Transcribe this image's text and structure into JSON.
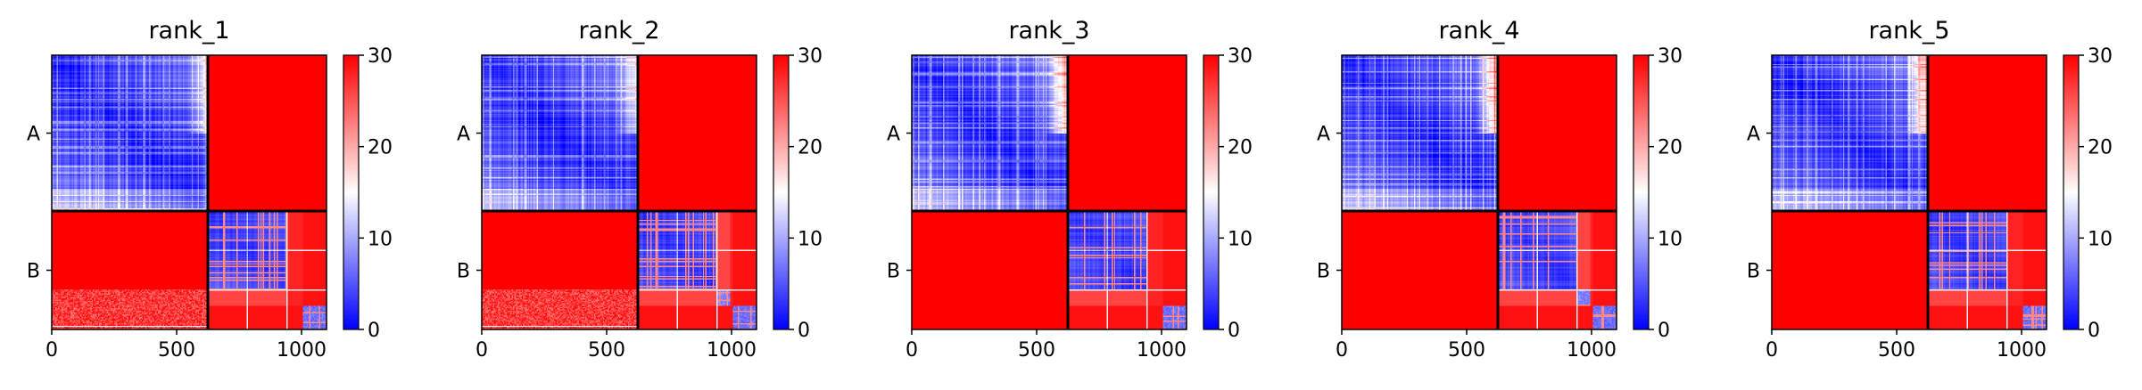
{
  "chart_data": {
    "type": "heatmap",
    "colormap": {
      "name": "bwr",
      "vmin": 0,
      "vmax": 30,
      "low_color": "#0000ff",
      "mid_color": "#ffffff",
      "high_color": "#ff0000"
    },
    "x_range": [
      0,
      1100
    ],
    "block_boundary": 625,
    "xticks": [
      0,
      500,
      1000
    ],
    "xtick_labels": [
      "0",
      "500",
      "1000"
    ],
    "row_labels": [
      "A",
      "B"
    ],
    "colorbar_ticks": [
      0,
      10,
      20,
      30
    ],
    "colorbar_tick_labels": [
      "0",
      "10",
      "20",
      "30"
    ],
    "panels": [
      {
        "title": "rank_1"
      },
      {
        "title": "rank_2"
      },
      {
        "title": "rank_3"
      },
      {
        "title": "rank_4"
      },
      {
        "title": "rank_5"
      }
    ]
  }
}
